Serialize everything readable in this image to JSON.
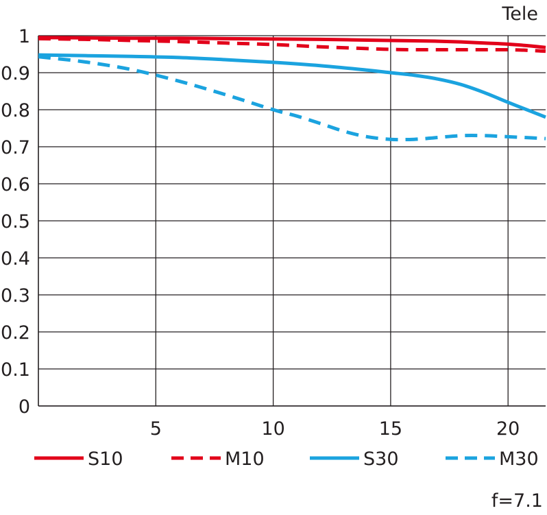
{
  "chart_data": {
    "type": "line",
    "title": "",
    "xlabel": "",
    "ylabel": "",
    "panel_label": "Tele",
    "footnote": "f=7.1",
    "xlim": [
      0,
      21.6
    ],
    "ylim": [
      0,
      1
    ],
    "x_ticks": [
      5,
      10,
      15,
      20
    ],
    "x_tick_labels": [
      "5",
      "10",
      "15",
      "20"
    ],
    "y_ticks": [
      0,
      0.1,
      0.2,
      0.3,
      0.4,
      0.5,
      0.6,
      0.7,
      0.8,
      0.9,
      1
    ],
    "y_tick_labels": [
      "0",
      "0.1",
      "0.2",
      "0.3",
      "0.4",
      "0.5",
      "0.6",
      "0.7",
      "0.8",
      "0.9",
      "1"
    ],
    "grid": true,
    "legend_position": "bottom",
    "colors": {
      "red": "#e2001a",
      "blue": "#1ba3df",
      "grid": "#231f20"
    },
    "series": [
      {
        "name": "S10",
        "color": "#e2001a",
        "dash": "solid",
        "x": [
          0,
          2,
          4,
          6,
          8,
          10,
          12,
          14,
          16,
          17,
          18,
          19,
          20,
          21,
          21.6
        ],
        "y": [
          0.995,
          0.994,
          0.993,
          0.993,
          0.992,
          0.991,
          0.99,
          0.988,
          0.986,
          0.985,
          0.983,
          0.98,
          0.977,
          0.972,
          0.968
        ]
      },
      {
        "name": "M10",
        "color": "#e2001a",
        "dash": "dashed",
        "x": [
          0,
          2,
          4,
          6,
          8,
          10,
          12,
          14,
          15,
          16,
          18,
          20,
          21,
          21.6
        ],
        "y": [
          0.992,
          0.99,
          0.987,
          0.984,
          0.98,
          0.976,
          0.97,
          0.965,
          0.963,
          0.962,
          0.962,
          0.962,
          0.96,
          0.958
        ]
      },
      {
        "name": "S30",
        "color": "#1ba3df",
        "dash": "solid",
        "x": [
          0,
          2,
          4,
          6,
          8,
          10,
          12,
          14,
          15,
          16,
          17,
          18,
          19,
          20,
          21,
          21.6
        ],
        "y": [
          0.948,
          0.946,
          0.944,
          0.941,
          0.935,
          0.928,
          0.919,
          0.907,
          0.9,
          0.893,
          0.883,
          0.868,
          0.846,
          0.82,
          0.795,
          0.78
        ]
      },
      {
        "name": "M30",
        "color": "#1ba3df",
        "dash": "dashed",
        "x": [
          0,
          2,
          4,
          6,
          8,
          10,
          11,
          12,
          13,
          14,
          15,
          16,
          17,
          18,
          19,
          20,
          21,
          21.6
        ],
        "y": [
          0.943,
          0.929,
          0.908,
          0.877,
          0.84,
          0.8,
          0.783,
          0.763,
          0.742,
          0.727,
          0.72,
          0.72,
          0.725,
          0.73,
          0.73,
          0.727,
          0.724,
          0.722
        ]
      }
    ]
  }
}
